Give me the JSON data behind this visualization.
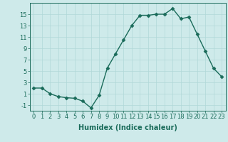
{
  "x": [
    0,
    1,
    2,
    3,
    4,
    5,
    6,
    7,
    8,
    9,
    10,
    11,
    12,
    13,
    14,
    15,
    16,
    17,
    18,
    19,
    20,
    21,
    22,
    23
  ],
  "y": [
    2,
    2,
    1,
    0.5,
    0.3,
    0.2,
    -0.3,
    -1.5,
    0.7,
    5.5,
    8,
    10.5,
    13,
    14.8,
    14.8,
    15,
    15,
    16,
    14.2,
    14.5,
    11.5,
    8.5,
    5.5,
    4
  ],
  "line_color": "#1a6b5a",
  "marker": "D",
  "markersize": 2.5,
  "linewidth": 1.0,
  "bg_color": "#ceeaea",
  "grid_color": "#b0d8d8",
  "xlabel": "Humidex (Indice chaleur)",
  "xlabel_fontsize": 7,
  "tick_fontsize": 6,
  "ylim": [
    -2,
    17
  ],
  "yticks": [
    -1,
    1,
    3,
    5,
    7,
    9,
    11,
    13,
    15
  ],
  "xticks": [
    0,
    1,
    2,
    3,
    4,
    5,
    6,
    7,
    8,
    9,
    10,
    11,
    12,
    13,
    14,
    15,
    16,
    17,
    18,
    19,
    20,
    21,
    22,
    23
  ]
}
